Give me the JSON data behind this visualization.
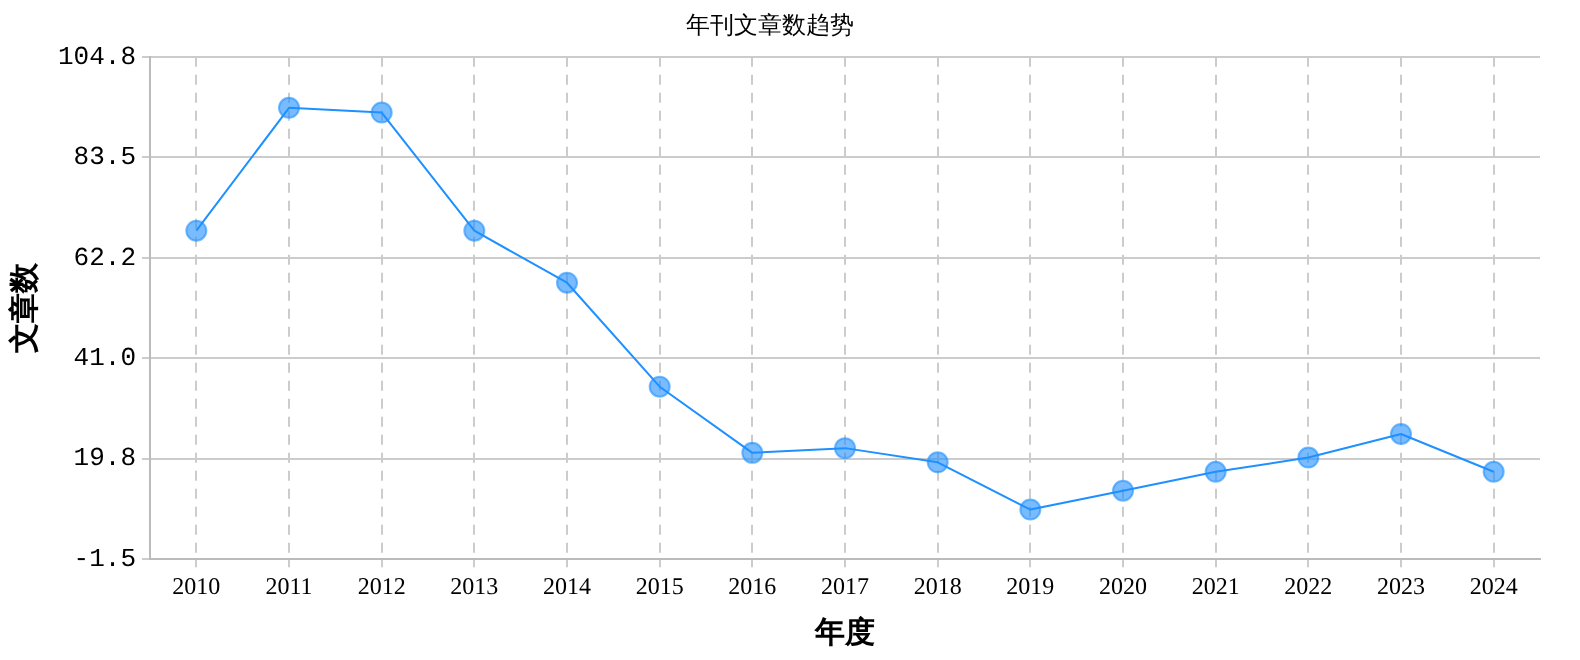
{
  "chart_data": {
    "type": "line",
    "title": "年刊文章数趋势",
    "xlabel": "年度",
    "ylabel": "文章数",
    "categories": [
      "2010",
      "2011",
      "2012",
      "2013",
      "2014",
      "2015",
      "2016",
      "2017",
      "2018",
      "2019",
      "2020",
      "2021",
      "2022",
      "2023",
      "2024"
    ],
    "series": [
      {
        "color": "#1e90ff",
        "values": [
          68,
          94,
          93,
          68,
          57,
          35,
          21,
          22,
          19,
          9,
          13,
          17,
          20,
          25,
          17
        ]
      }
    ],
    "ylim": [
      -1.5,
      104.8
    ],
    "yticks": [
      {
        "value": -1.5,
        "label": "-1.5"
      },
      {
        "value": 19.8,
        "label": "19.8"
      },
      {
        "value": 41.0,
        "label": "41.0"
      },
      {
        "value": 62.2,
        "label": "62.2"
      },
      {
        "value": 83.5,
        "label": "83.5"
      },
      {
        "value": 104.8,
        "label": "104.8"
      }
    ],
    "grid": true,
    "marker": "circle",
    "line_style": "solid"
  }
}
